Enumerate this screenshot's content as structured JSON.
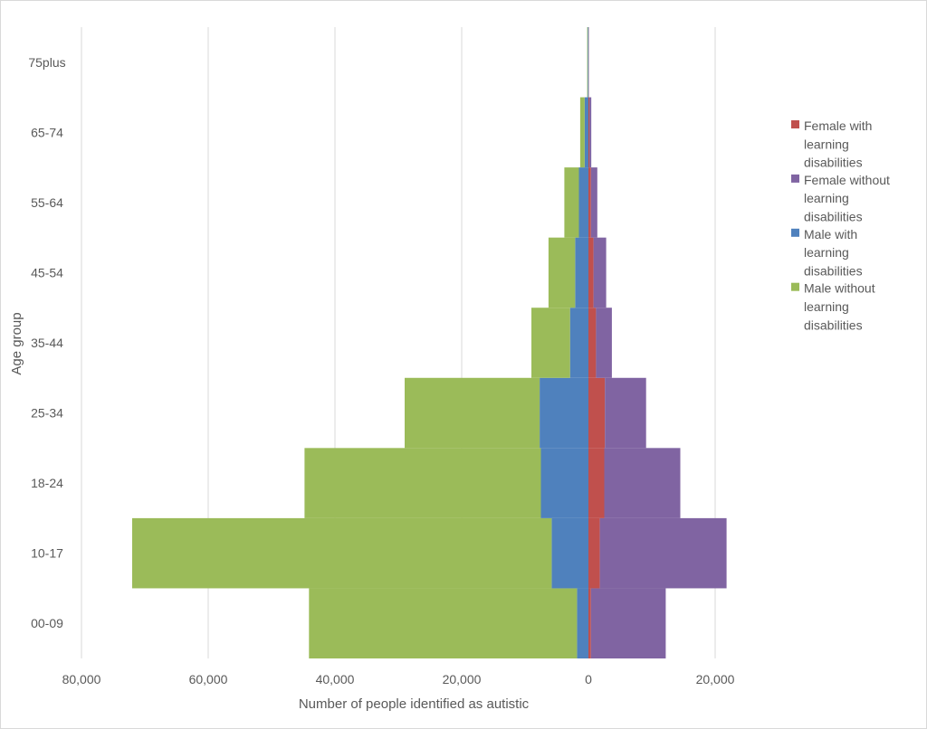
{
  "chart_data": {
    "type": "bar",
    "orientation": "horizontal-stacked-pyramid",
    "title": "",
    "xlabel": "Number of people identified as autistic",
    "ylabel": "Age group",
    "xlim": [
      -80000,
      25000
    ],
    "x_ticks": [
      -80000,
      -60000,
      -40000,
      -20000,
      0,
      20000
    ],
    "x_tick_labels": [
      "80,000",
      "60,000",
      "40,000",
      "20,000",
      "0",
      "20,000"
    ],
    "grid": true,
    "legend_position": "right",
    "categories": [
      "00-09",
      "10-17",
      "18-24",
      "25-34",
      "35-44",
      "45-54",
      "55-64",
      "65-74",
      "75plus"
    ],
    "series": [
      {
        "name": "Female with learning disabilities",
        "side": "right",
        "color": "#C0504D",
        "values": [
          400,
          1800,
          2500,
          2600,
          1200,
          800,
          400,
          150,
          30
        ]
      },
      {
        "name": "Female  without learning disabilities",
        "side": "right",
        "color": "#8064A2",
        "values": [
          11800,
          20000,
          12000,
          6500,
          2500,
          2000,
          1000,
          300,
          50
        ]
      },
      {
        "name": "Male with learning disabilities",
        "side": "left",
        "color": "#4F81BD",
        "values": [
          1800,
          5800,
          7500,
          7700,
          2900,
          2100,
          1500,
          600,
          100
        ]
      },
      {
        "name": "Male  without learning disabilities",
        "side": "left",
        "color": "#9BBB59",
        "values": [
          42300,
          66200,
          37300,
          21300,
          6100,
          4200,
          2300,
          700,
          100
        ]
      }
    ]
  },
  "legend": {
    "items": [
      {
        "lines": [
          "Female with",
          "learning",
          "disabilities"
        ],
        "color": "#C0504D"
      },
      {
        "lines": [
          "Female  without",
          "learning",
          "disabilities"
        ],
        "color": "#8064A2"
      },
      {
        "lines": [
          "Male with",
          "learning",
          "disabilities"
        ],
        "color": "#4F81BD"
      },
      {
        "lines": [
          "Male  without",
          "learning",
          "disabilities"
        ],
        "color": "#9BBB59"
      }
    ]
  }
}
